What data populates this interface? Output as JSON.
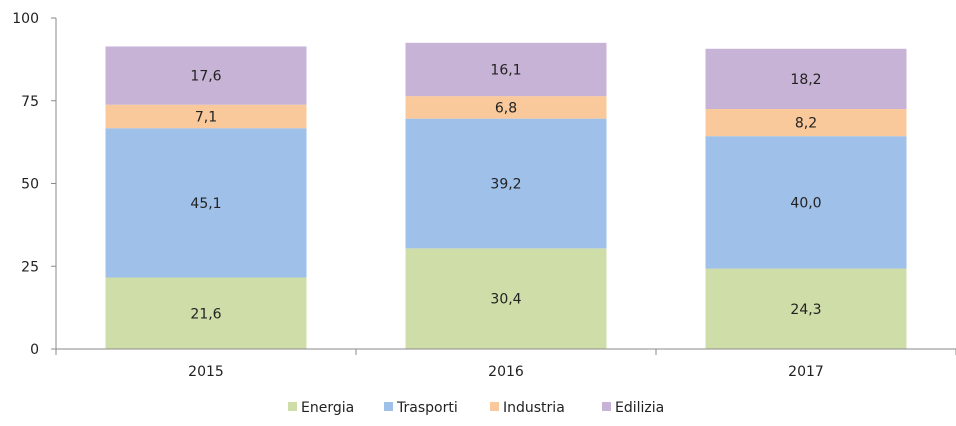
{
  "chart_data": {
    "type": "bar",
    "stacked": true,
    "categories": [
      "2015",
      "2016",
      "2017"
    ],
    "series": [
      {
        "name": "Energia",
        "color": "#cfdda8",
        "values": [
          21.6,
          30.4,
          24.3
        ],
        "labels": [
          "21,6",
          "30,4",
          "24,3"
        ]
      },
      {
        "name": "Trasporti",
        "color": "#9fc0e8",
        "values": [
          45.1,
          39.2,
          40.0
        ],
        "labels": [
          "45,1",
          "39,2",
          "40,0"
        ]
      },
      {
        "name": "Industria",
        "color": "#f9c99b",
        "values": [
          7.1,
          6.8,
          8.2
        ],
        "labels": [
          "7,1",
          "6,8",
          "8,2"
        ]
      },
      {
        "name": "Edilizia",
        "color": "#c7b3d6",
        "values": [
          17.6,
          16.1,
          18.2
        ],
        "labels": [
          "17,6",
          "16,1",
          "18,2"
        ]
      }
    ],
    "ylim": [
      0,
      100
    ],
    "yticks": [
      0,
      25,
      50,
      75,
      100
    ],
    "grid": false,
    "legend": "bottom"
  }
}
